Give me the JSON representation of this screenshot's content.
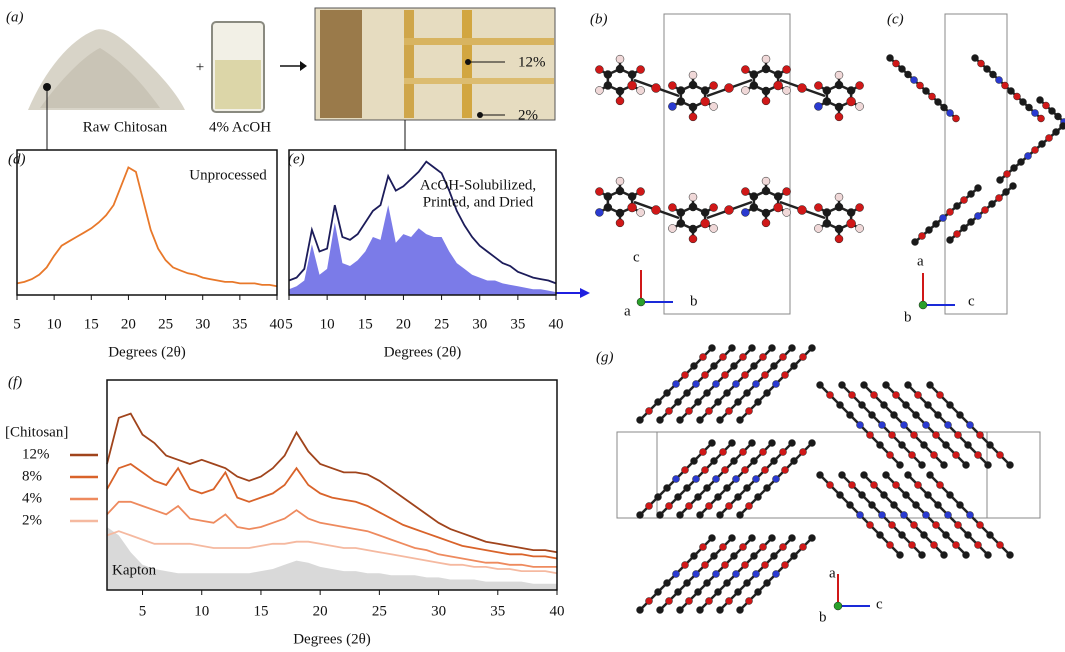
{
  "figure": {
    "panels": [
      "(a)",
      "(b)",
      "(c)",
      "(d)",
      "(e)",
      "(f)",
      "(g)"
    ],
    "a": {
      "powder": "Raw Chitosan",
      "plus": "+",
      "solvent": "4% AcOH",
      "high": "12%",
      "low": "2%"
    },
    "b_axes": [
      "c",
      "a",
      "b"
    ],
    "c_axes": [
      "a",
      "b",
      "c"
    ],
    "g_axes": [
      "a",
      "b",
      "c"
    ]
  },
  "chart_data": [
    {
      "type": "line",
      "xlabel": "Degrees (2θ)",
      "xlim": [
        5,
        40
      ],
      "ylim": [
        0,
        100
      ],
      "xticks": [
        5,
        10,
        15,
        20,
        25,
        30,
        35,
        40
      ],
      "x": [
        5,
        6,
        7,
        8,
        9,
        10,
        11,
        12,
        13,
        14,
        15,
        16,
        17,
        18,
        19,
        20,
        21,
        22,
        23,
        24,
        25,
        26,
        27,
        28,
        29,
        30,
        31,
        32,
        33,
        34,
        35,
        36,
        37,
        38,
        39,
        40
      ],
      "series": [
        {
          "name": "Unprocessed",
          "color": "#e8782a",
          "values": [
            8,
            9,
            11,
            14,
            19,
            27,
            34,
            37,
            40,
            43,
            46,
            50,
            55,
            62,
            75,
            88,
            85,
            65,
            45,
            32,
            24,
            19,
            17,
            15,
            14,
            12,
            11,
            10,
            9,
            9,
            8,
            8,
            8,
            7,
            7,
            6
          ]
        }
      ]
    },
    {
      "type": "line",
      "xlabel": "Degrees (2θ)",
      "xlim": [
        5,
        40
      ],
      "ylim": [
        0,
        100
      ],
      "xticks": [
        5,
        10,
        15,
        20,
        25,
        30,
        35,
        40
      ],
      "annotation": [
        "AcOH-Solubilized,",
        "Printed, and Dried"
      ],
      "x": [
        5,
        6,
        7,
        8,
        9,
        10,
        11,
        12,
        13,
        14,
        15,
        16,
        17,
        18,
        19,
        20,
        21,
        22,
        23,
        24,
        25,
        26,
        27,
        28,
        29,
        30,
        31,
        32,
        33,
        34,
        35,
        36,
        37,
        38,
        39,
        40
      ],
      "series": [
        {
          "color": "#7b7be8",
          "fill": true,
          "values": [
            4,
            6,
            10,
            35,
            14,
            18,
            50,
            22,
            20,
            24,
            30,
            40,
            38,
            62,
            36,
            42,
            40,
            46,
            42,
            40,
            40,
            30,
            22,
            18,
            14,
            12,
            10,
            10,
            8,
            7,
            6,
            5,
            4,
            4,
            3,
            2
          ]
        },
        {
          "color": "#1c1c5a",
          "values": [
            10,
            12,
            18,
            45,
            30,
            32,
            62,
            40,
            38,
            42,
            50,
            58,
            62,
            82,
            72,
            75,
            80,
            85,
            92,
            88,
            84,
            72,
            58,
            48,
            40,
            34,
            30,
            26,
            22,
            20,
            16,
            14,
            12,
            11,
            10,
            8
          ]
        }
      ]
    },
    {
      "type": "line",
      "xlabel": "Degrees (2θ)",
      "legend_title": "[Chitosan]",
      "xlim": [
        2,
        40
      ],
      "ylim": [
        0,
        100
      ],
      "xticks": [
        5,
        10,
        15,
        20,
        25,
        30,
        35,
        40
      ],
      "x": [
        2,
        3,
        4,
        5,
        6,
        7,
        8,
        9,
        10,
        11,
        12,
        13,
        14,
        15,
        16,
        17,
        18,
        19,
        20,
        21,
        22,
        23,
        24,
        25,
        26,
        27,
        28,
        29,
        30,
        31,
        32,
        33,
        34,
        35,
        36,
        37,
        38,
        39,
        40
      ],
      "series": [
        {
          "name": "12%",
          "color": "#a0441c",
          "values": [
            60,
            82,
            84,
            74,
            70,
            64,
            62,
            60,
            62,
            60,
            58,
            54,
            52,
            54,
            58,
            64,
            75,
            66,
            60,
            58,
            56,
            56,
            55,
            52,
            48,
            44,
            40,
            36,
            32,
            29,
            27,
            25,
            23,
            22,
            21,
            20,
            19,
            19,
            18
          ]
        },
        {
          "name": "8%",
          "color": "#d9632a",
          "values": [
            48,
            58,
            60,
            56,
            52,
            50,
            58,
            48,
            46,
            48,
            56,
            44,
            42,
            44,
            46,
            50,
            58,
            50,
            46,
            44,
            43,
            42,
            40,
            37,
            34,
            31,
            29,
            27,
            25,
            23,
            21,
            20,
            19,
            18,
            17,
            17,
            16,
            16,
            15
          ]
        },
        {
          "name": "4%",
          "color": "#ee8a5e",
          "values": [
            36,
            42,
            42,
            40,
            38,
            36,
            40,
            34,
            33,
            32,
            36,
            30,
            29,
            30,
            32,
            34,
            38,
            34,
            32,
            31,
            30,
            29,
            28,
            26,
            24,
            22,
            20,
            19,
            17,
            16,
            15,
            14,
            13,
            13,
            12,
            12,
            11,
            11,
            11
          ]
        },
        {
          "name": "2%",
          "color": "#f5b9a0",
          "values": [
            26,
            28,
            26,
            24,
            22,
            22,
            22,
            22,
            21,
            20,
            20,
            20,
            20,
            21,
            22,
            22,
            23,
            23,
            22,
            21,
            20,
            20,
            19,
            18,
            17,
            16,
            15,
            14,
            13,
            12,
            12,
            11,
            11,
            10,
            10,
            9,
            9,
            9,
            8
          ]
        },
        {
          "name": "Kapton",
          "color": "#d9d9d9",
          "fill": true,
          "values": [
            30,
            26,
            18,
            12,
            10,
            9,
            8,
            8,
            8,
            8,
            8,
            8,
            8,
            9,
            10,
            12,
            14,
            13,
            11,
            10,
            9,
            9,
            8,
            8,
            7,
            7,
            7,
            6,
            6,
            5,
            5,
            5,
            4,
            4,
            4,
            4,
            3,
            3,
            3
          ]
        }
      ]
    }
  ]
}
